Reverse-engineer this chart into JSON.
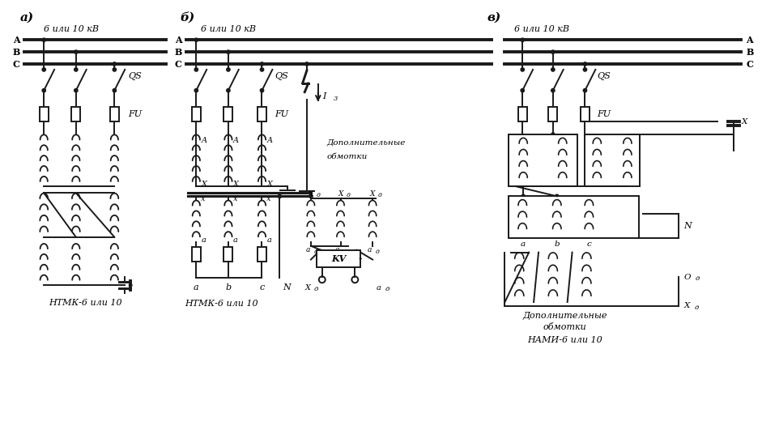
{
  "bg_color": "#ffffff",
  "line_color": "#1a1a1a",
  "lw": 1.4,
  "lw_bus": 2.8,
  "label_a": "а)",
  "label_b": "б)",
  "label_v": "в)",
  "title_kv": "6 или 10 кВ",
  "qs_label": "QS",
  "fu_label": "FU",
  "caption_a": "НТМК-6 или 10",
  "caption_b": "НТМК-6 или 10",
  "caption_v1": "Дополнительные",
  "caption_v2": "обмотки",
  "caption_v3": "НАМИ-6 или 10",
  "iz_label": "I",
  "iz_sub": "3",
  "kv_label": "KV",
  "n_label": "N",
  "od_label": "O",
  "od_sub": "д",
  "xd_label": "X",
  "xd_sub": "д",
  "dop_obm1": "Дополнительные",
  "dop_obm2": "обмотки"
}
